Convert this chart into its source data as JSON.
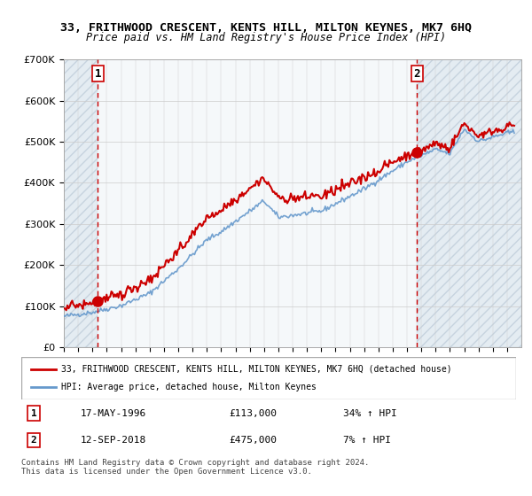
{
  "title": "33, FRITHWOOD CRESCENT, KENTS HILL, MILTON KEYNES, MK7 6HQ",
  "subtitle": "Price paid vs. HM Land Registry's House Price Index (HPI)",
  "legend_line1": "33, FRITHWOOD CRESCENT, KENTS HILL, MILTON KEYNES, MK7 6HQ (detached house)",
  "legend_line2": "HPI: Average price, detached house, Milton Keynes",
  "sale1_label": "1",
  "sale1_date": "17-MAY-1996",
  "sale1_price": "£113,000",
  "sale1_hpi": "34% ↑ HPI",
  "sale1_year": 1996.38,
  "sale1_value": 113000,
  "sale2_label": "2",
  "sale2_date": "12-SEP-2018",
  "sale2_price": "£475,000",
  "sale2_hpi": "7% ↑ HPI",
  "sale2_year": 2018.71,
  "sale2_value": 475000,
  "footer": "Contains HM Land Registry data © Crown copyright and database right 2024.\nThis data is licensed under the Open Government Licence v3.0.",
  "hatch_color": "#c8d8e8",
  "hatch_bg": "#e8f0f8",
  "plot_bg": "#f0f4f8",
  "grid_color": "#cccccc",
  "red_line_color": "#cc0000",
  "blue_line_color": "#6699cc",
  "dashed_red": "#cc0000",
  "marker_color": "#cc0000",
  "xmin": 1994,
  "xmax": 2026,
  "ymin": 0,
  "ymax": 700000
}
